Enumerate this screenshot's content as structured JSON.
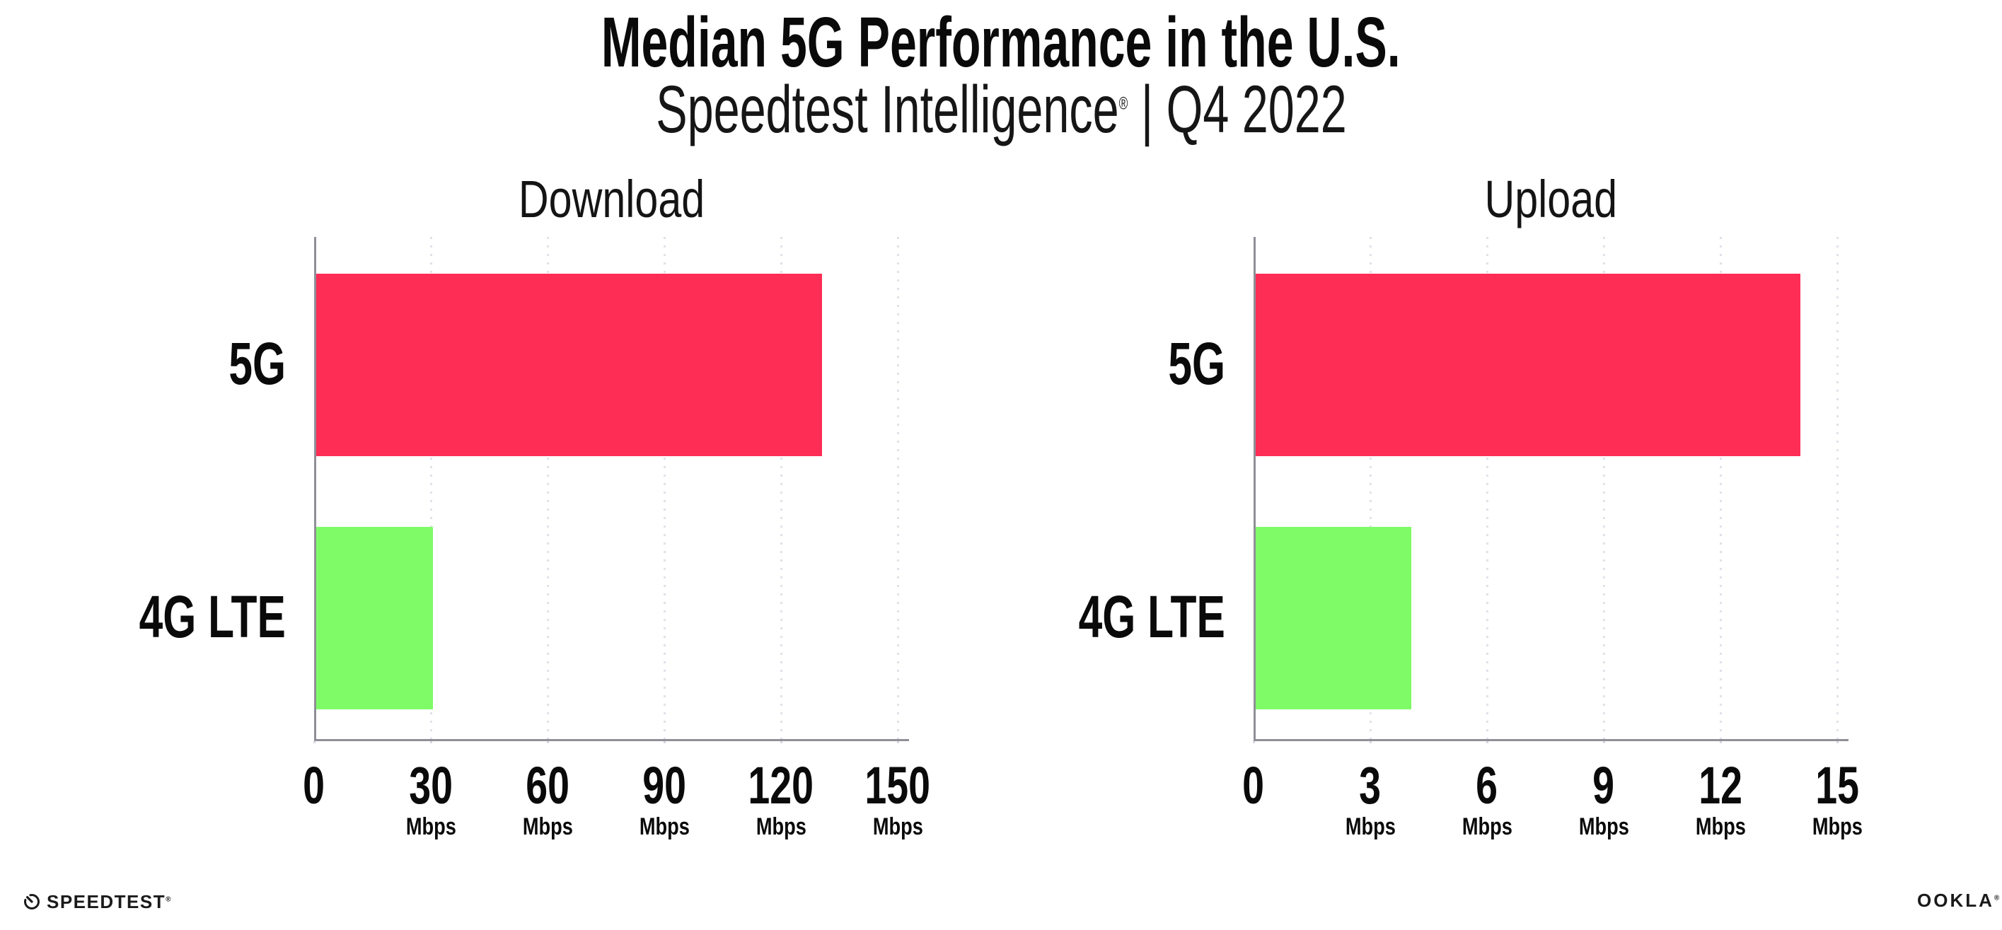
{
  "header": {
    "title": "Median 5G Performance in the U.S.",
    "subtitle": {
      "brand": "Speedtest Intelligence",
      "reg": "®",
      "rest": " | Q4 2022"
    }
  },
  "colors": {
    "bar_5g": "#fd2d55",
    "bar_4g_lte": "#7ffb67",
    "gridline": "#e1e1eb",
    "axis": "#8f8f97",
    "text": "#0a0a0a"
  },
  "chart_data": [
    {
      "type": "bar",
      "orientation": "horizontal",
      "title": "Download",
      "categories": [
        "5G",
        "4G LTE"
      ],
      "values": [
        130,
        30
      ],
      "unit": "Mbps",
      "xlim": [
        0,
        150
      ],
      "ticks": [
        0,
        30,
        60,
        90,
        120,
        150
      ],
      "bar_colors": [
        "#fd2d55",
        "#7ffb67"
      ],
      "grid": "vertical-dotted",
      "legend": "none"
    },
    {
      "type": "bar",
      "orientation": "horizontal",
      "title": "Upload",
      "categories": [
        "5G",
        "4G LTE"
      ],
      "values": [
        14,
        4
      ],
      "unit": "Mbps",
      "xlim": [
        0,
        15
      ],
      "ticks": [
        0,
        3,
        6,
        9,
        12,
        15
      ],
      "bar_colors": [
        "#fd2d55",
        "#7ffb67"
      ],
      "grid": "vertical-dotted",
      "legend": "none"
    }
  ],
  "footer": {
    "speedtest_label": "SPEEDTEST",
    "speedtest_reg": "®",
    "ookla_label": "OOKLA",
    "ookla_reg": "®"
  }
}
